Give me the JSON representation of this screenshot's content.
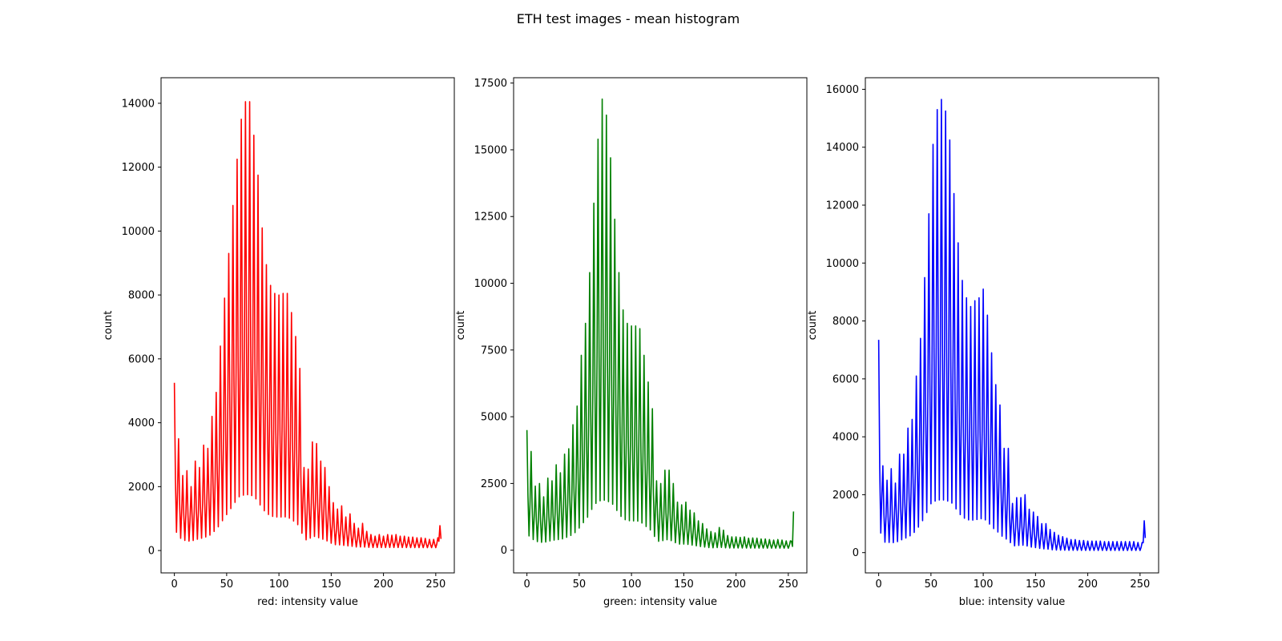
{
  "figure": {
    "title": "ETH test images - mean histogram"
  },
  "chart_data": [
    {
      "type": "line",
      "color": "#ff0000",
      "xlabel": "red: intensity value",
      "ylabel": "count",
      "xlim": [
        -12.75,
        267.75
      ],
      "ylim": [
        -700,
        14800
      ],
      "xticks": [
        0,
        50,
        100,
        150,
        200,
        250
      ],
      "yticks": [
        0,
        2000,
        4000,
        6000,
        8000,
        10000,
        12000,
        14000
      ],
      "grid": false,
      "background": 250,
      "peaks": [
        [
          0,
          5250
        ],
        [
          4,
          3500
        ],
        [
          8,
          2350
        ],
        [
          12,
          2500
        ],
        [
          16,
          2000
        ],
        [
          20,
          2800
        ],
        [
          24,
          2600
        ],
        [
          28,
          3300
        ],
        [
          32,
          3200
        ],
        [
          36,
          4200
        ],
        [
          40,
          4950
        ],
        [
          44,
          6400
        ],
        [
          48,
          7900
        ],
        [
          52,
          9300
        ],
        [
          56,
          10800
        ],
        [
          60,
          12250
        ],
        [
          64,
          13500
        ],
        [
          68,
          14050
        ],
        [
          72,
          14050
        ],
        [
          76,
          13000
        ],
        [
          80,
          11750
        ],
        [
          84,
          10100
        ],
        [
          88,
          8950
        ],
        [
          92,
          8300
        ],
        [
          96,
          8050
        ],
        [
          100,
          8000
        ],
        [
          104,
          8050
        ],
        [
          108,
          8050
        ],
        [
          112,
          7450
        ],
        [
          116,
          6700
        ],
        [
          120,
          5700
        ],
        [
          124,
          2600
        ],
        [
          128,
          2550
        ],
        [
          132,
          3400
        ],
        [
          136,
          3350
        ],
        [
          140,
          2800
        ],
        [
          144,
          2600
        ],
        [
          148,
          2000
        ],
        [
          152,
          1500
        ],
        [
          156,
          1300
        ],
        [
          160,
          1400
        ],
        [
          164,
          1050
        ],
        [
          168,
          1150
        ],
        [
          172,
          850
        ],
        [
          176,
          700
        ],
        [
          180,
          850
        ],
        [
          184,
          600
        ],
        [
          188,
          500
        ],
        [
          192,
          450
        ],
        [
          196,
          500
        ],
        [
          200,
          450
        ],
        [
          204,
          500
        ],
        [
          208,
          480
        ],
        [
          212,
          500
        ],
        [
          216,
          450
        ],
        [
          220,
          450
        ],
        [
          224,
          420
        ],
        [
          228,
          420
        ],
        [
          232,
          400
        ],
        [
          236,
          400
        ],
        [
          240,
          380
        ],
        [
          244,
          350
        ],
        [
          248,
          350
        ],
        [
          252,
          400
        ],
        [
          254,
          780
        ]
      ]
    },
    {
      "type": "line",
      "color": "#008000",
      "xlabel": "green: intensity value",
      "ylabel": "count",
      "xlim": [
        -12.75,
        267.75
      ],
      "ylim": [
        -850,
        17700
      ],
      "xticks": [
        0,
        50,
        100,
        150,
        200,
        250
      ],
      "yticks": [
        0,
        2500,
        5000,
        7500,
        10000,
        12500,
        15000,
        17500
      ],
      "grid": false,
      "background": 200,
      "peaks": [
        [
          0,
          4500
        ],
        [
          4,
          3700
        ],
        [
          8,
          2400
        ],
        [
          12,
          2500
        ],
        [
          16,
          2000
        ],
        [
          20,
          2700
        ],
        [
          24,
          2600
        ],
        [
          28,
          3200
        ],
        [
          32,
          2900
        ],
        [
          36,
          3600
        ],
        [
          40,
          3800
        ],
        [
          44,
          4700
        ],
        [
          48,
          5400
        ],
        [
          52,
          7300
        ],
        [
          56,
          8500
        ],
        [
          60,
          10400
        ],
        [
          64,
          13000
        ],
        [
          68,
          15400
        ],
        [
          72,
          16900
        ],
        [
          76,
          16300
        ],
        [
          80,
          14700
        ],
        [
          84,
          12400
        ],
        [
          88,
          10400
        ],
        [
          92,
          9000
        ],
        [
          96,
          8500
        ],
        [
          100,
          8400
        ],
        [
          104,
          8400
        ],
        [
          108,
          8300
        ],
        [
          112,
          7300
        ],
        [
          116,
          6300
        ],
        [
          120,
          5300
        ],
        [
          124,
          2600
        ],
        [
          128,
          2500
        ],
        [
          132,
          3000
        ],
        [
          136,
          3000
        ],
        [
          140,
          2500
        ],
        [
          144,
          1800
        ],
        [
          148,
          1700
        ],
        [
          152,
          1800
        ],
        [
          156,
          1500
        ],
        [
          160,
          1400
        ],
        [
          164,
          1100
        ],
        [
          168,
          1000
        ],
        [
          172,
          800
        ],
        [
          176,
          700
        ],
        [
          180,
          650
        ],
        [
          184,
          850
        ],
        [
          188,
          750
        ],
        [
          192,
          550
        ],
        [
          196,
          500
        ],
        [
          200,
          500
        ],
        [
          204,
          480
        ],
        [
          208,
          500
        ],
        [
          212,
          450
        ],
        [
          216,
          460
        ],
        [
          220,
          450
        ],
        [
          224,
          420
        ],
        [
          228,
          420
        ],
        [
          232,
          400
        ],
        [
          236,
          380
        ],
        [
          240,
          400
        ],
        [
          244,
          380
        ],
        [
          248,
          350
        ],
        [
          252,
          350
        ],
        [
          255,
          1450
        ]
      ]
    },
    {
      "type": "line",
      "color": "#0000ff",
      "xlabel": "blue: intensity value",
      "ylabel": "count",
      "xlim": [
        -12.75,
        267.75
      ],
      "ylim": [
        -700,
        16400
      ],
      "xticks": [
        0,
        50,
        100,
        150,
        200,
        250
      ],
      "yticks": [
        0,
        2000,
        4000,
        6000,
        8000,
        10000,
        12000,
        14000,
        16000
      ],
      "grid": false,
      "background": 200,
      "peaks": [
        [
          0,
          7350
        ],
        [
          4,
          3000
        ],
        [
          8,
          2500
        ],
        [
          12,
          2900
        ],
        [
          16,
          2400
        ],
        [
          20,
          3400
        ],
        [
          24,
          3400
        ],
        [
          28,
          4300
        ],
        [
          32,
          4600
        ],
        [
          36,
          6100
        ],
        [
          40,
          7400
        ],
        [
          44,
          9500
        ],
        [
          48,
          11700
        ],
        [
          52,
          14100
        ],
        [
          56,
          15300
        ],
        [
          60,
          15650
        ],
        [
          64,
          15250
        ],
        [
          68,
          14250
        ],
        [
          72,
          12400
        ],
        [
          76,
          10700
        ],
        [
          80,
          9400
        ],
        [
          84,
          8800
        ],
        [
          88,
          8500
        ],
        [
          92,
          8700
        ],
        [
          96,
          8800
        ],
        [
          100,
          9100
        ],
        [
          104,
          8200
        ],
        [
          108,
          6900
        ],
        [
          112,
          5800
        ],
        [
          116,
          5100
        ],
        [
          120,
          3600
        ],
        [
          124,
          3600
        ],
        [
          128,
          1700
        ],
        [
          132,
          1900
        ],
        [
          136,
          1900
        ],
        [
          140,
          2000
        ],
        [
          144,
          1500
        ],
        [
          148,
          1400
        ],
        [
          152,
          1250
        ],
        [
          156,
          1000
        ],
        [
          160,
          1000
        ],
        [
          164,
          800
        ],
        [
          168,
          700
        ],
        [
          172,
          600
        ],
        [
          176,
          550
        ],
        [
          180,
          500
        ],
        [
          184,
          450
        ],
        [
          188,
          450
        ],
        [
          192,
          420
        ],
        [
          196,
          420
        ],
        [
          200,
          400
        ],
        [
          204,
          400
        ],
        [
          208,
          400
        ],
        [
          212,
          400
        ],
        [
          216,
          380
        ],
        [
          220,
          380
        ],
        [
          224,
          380
        ],
        [
          228,
          380
        ],
        [
          232,
          380
        ],
        [
          236,
          380
        ],
        [
          240,
          380
        ],
        [
          244,
          380
        ],
        [
          248,
          350
        ],
        [
          252,
          350
        ],
        [
          254,
          1100
        ]
      ]
    }
  ]
}
